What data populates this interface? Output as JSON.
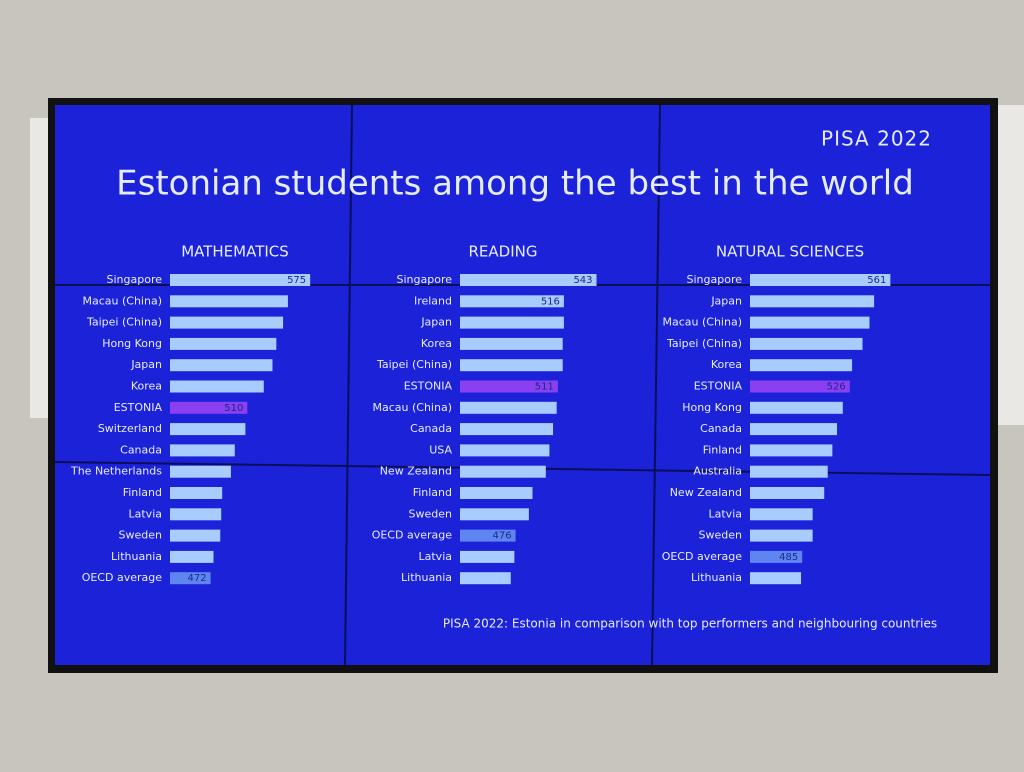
{
  "header": {
    "label": "PISA 2022",
    "title": "Estonian students among the best in the world"
  },
  "footnote": "PISA 2022: Estonia in comparison with top performers and neighbouring countries",
  "chart_data": [
    {
      "type": "bar",
      "orientation": "horizontal",
      "title": "MATHEMATICS",
      "categories": [
        "Singapore",
        "Macau (China)",
        "Taipei (China)",
        "Hong Kong",
        "Japan",
        "Korea",
        "ESTONIA",
        "Switzerland",
        "Canada",
        "The Netherlands",
        "Finland",
        "Latvia",
        "Sweden",
        "Lithuania",
        "OECD average"
      ],
      "values": [
        575,
        552,
        547,
        540,
        536,
        527,
        510,
        508,
        497,
        493,
        484,
        483,
        482,
        475,
        472
      ],
      "show_value": [
        true,
        false,
        false,
        false,
        false,
        false,
        true,
        false,
        false,
        false,
        false,
        false,
        false,
        false,
        true
      ],
      "colors": [
        "#a9ccff",
        "#a9ccff",
        "#a9ccff",
        "#a9ccff",
        "#a9ccff",
        "#a9ccff",
        "#8a3ff0",
        "#a9ccff",
        "#a9ccff",
        "#a9ccff",
        "#a9ccff",
        "#a9ccff",
        "#a9ccff",
        "#a9ccff",
        "#5f86f0"
      ],
      "xlim": [
        430,
        580
      ]
    },
    {
      "type": "bar",
      "orientation": "horizontal",
      "title": "READING",
      "categories": [
        "Singapore",
        "Ireland",
        "Japan",
        "Korea",
        "Taipei (China)",
        "ESTONIA",
        "Macau (China)",
        "Canada",
        "USA",
        "New Zealand",
        "Finland",
        "Sweden",
        "OECD average",
        "Latvia",
        "Lithuania"
      ],
      "values": [
        543,
        516,
        516,
        515,
        515,
        511,
        510,
        507,
        504,
        501,
        490,
        487,
        476,
        475,
        472
      ],
      "show_value": [
        true,
        true,
        false,
        false,
        false,
        true,
        false,
        false,
        false,
        false,
        false,
        false,
        true,
        false,
        false
      ],
      "colors": [
        "#a9ccff",
        "#a9ccff",
        "#a9ccff",
        "#a9ccff",
        "#a9ccff",
        "#8a3ff0",
        "#a9ccff",
        "#a9ccff",
        "#a9ccff",
        "#a9ccff",
        "#a9ccff",
        "#a9ccff",
        "#5f86f0",
        "#a9ccff",
        "#a9ccff"
      ],
      "xlim": [
        430,
        550
      ]
    },
    {
      "type": "bar",
      "orientation": "horizontal",
      "title": "NATURAL SCIENCES",
      "categories": [
        "Singapore",
        "Japan",
        "Macau (China)",
        "Taipei (China)",
        "Korea",
        "ESTONIA",
        "Hong Kong",
        "Canada",
        "Finland",
        "Australia",
        "New Zealand",
        "Latvia",
        "Sweden",
        "OECD average",
        "Lithuania"
      ],
      "values": [
        561,
        547,
        543,
        537,
        528,
        526,
        520,
        515,
        511,
        507,
        504,
        494,
        494,
        485,
        484
      ],
      "show_value": [
        true,
        false,
        false,
        false,
        false,
        true,
        false,
        false,
        false,
        false,
        false,
        false,
        false,
        true,
        false
      ],
      "colors": [
        "#a9ccff",
        "#a9ccff",
        "#a9ccff",
        "#a9ccff",
        "#a9ccff",
        "#8a3ff0",
        "#a9ccff",
        "#a9ccff",
        "#a9ccff",
        "#a9ccff",
        "#a9ccff",
        "#a9ccff",
        "#a9ccff",
        "#5f86f0",
        "#a9ccff"
      ],
      "xlim": [
        440,
        565
      ]
    }
  ]
}
